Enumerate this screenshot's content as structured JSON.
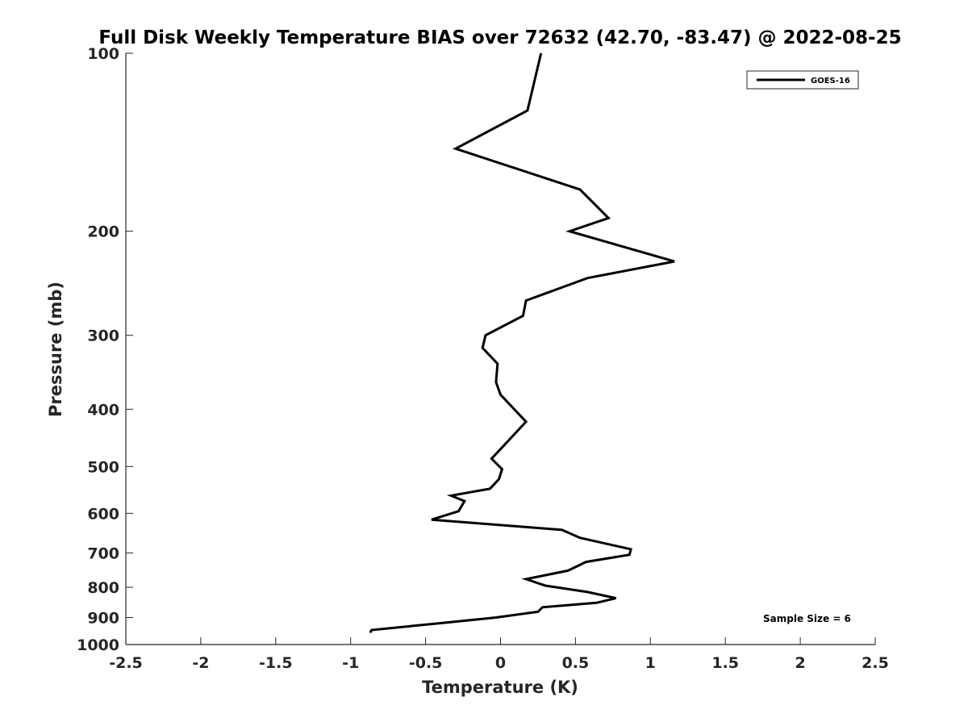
{
  "chart_data": {
    "type": "line",
    "title": "Full Disk Weekly Temperature BIAS over 72632 (42.70, -83.47) @ 2022-08-25",
    "xlabel": "Temperature (K)",
    "ylabel": "Pressure (mb)",
    "xlim": [
      -2.5,
      2.5
    ],
    "ylim": [
      100,
      1000
    ],
    "y_scale": "log",
    "y_reversed": true,
    "grid": false,
    "legend_position": "top-right",
    "x_ticks": [
      "-2.5",
      "-2",
      "-1.5",
      "-1",
      "-0.5",
      "0",
      "0.5",
      "1",
      "1.5",
      "2",
      "2.5"
    ],
    "y_ticks": [
      "100",
      "200",
      "300",
      "400",
      "500",
      "600",
      "700",
      "800",
      "900",
      "1000"
    ],
    "annotation": "Sample Size = 6",
    "series": [
      {
        "name": "GOES-16",
        "color": "#000000",
        "points": [
          [
            0.27,
            100
          ],
          [
            0.18,
            125
          ],
          [
            -0.3,
            145
          ],
          [
            0.53,
            170
          ],
          [
            0.72,
            190
          ],
          [
            0.46,
            200
          ],
          [
            1.16,
            225
          ],
          [
            0.58,
            240
          ],
          [
            0.17,
            262
          ],
          [
            0.15,
            278
          ],
          [
            -0.1,
            300
          ],
          [
            -0.12,
            315
          ],
          [
            -0.02,
            335
          ],
          [
            -0.03,
            360
          ],
          [
            0.0,
            378
          ],
          [
            0.17,
            420
          ],
          [
            0.06,
            450
          ],
          [
            -0.06,
            485
          ],
          [
            0.01,
            505
          ],
          [
            -0.01,
            525
          ],
          [
            -0.07,
            545
          ],
          [
            -0.33,
            560
          ],
          [
            -0.24,
            572
          ],
          [
            -0.28,
            595
          ],
          [
            -0.46,
            615
          ],
          [
            0.41,
            640
          ],
          [
            0.53,
            660
          ],
          [
            0.87,
            690
          ],
          [
            0.86,
            705
          ],
          [
            0.57,
            725
          ],
          [
            0.45,
            750
          ],
          [
            0.17,
            775
          ],
          [
            0.3,
            795
          ],
          [
            0.58,
            815
          ],
          [
            0.77,
            835
          ],
          [
            0.64,
            850
          ],
          [
            0.28,
            865
          ],
          [
            0.25,
            880
          ],
          [
            -0.03,
            900
          ],
          [
            -0.4,
            920
          ],
          [
            -0.86,
            945
          ],
          [
            -0.87,
            955
          ]
        ]
      }
    ]
  }
}
